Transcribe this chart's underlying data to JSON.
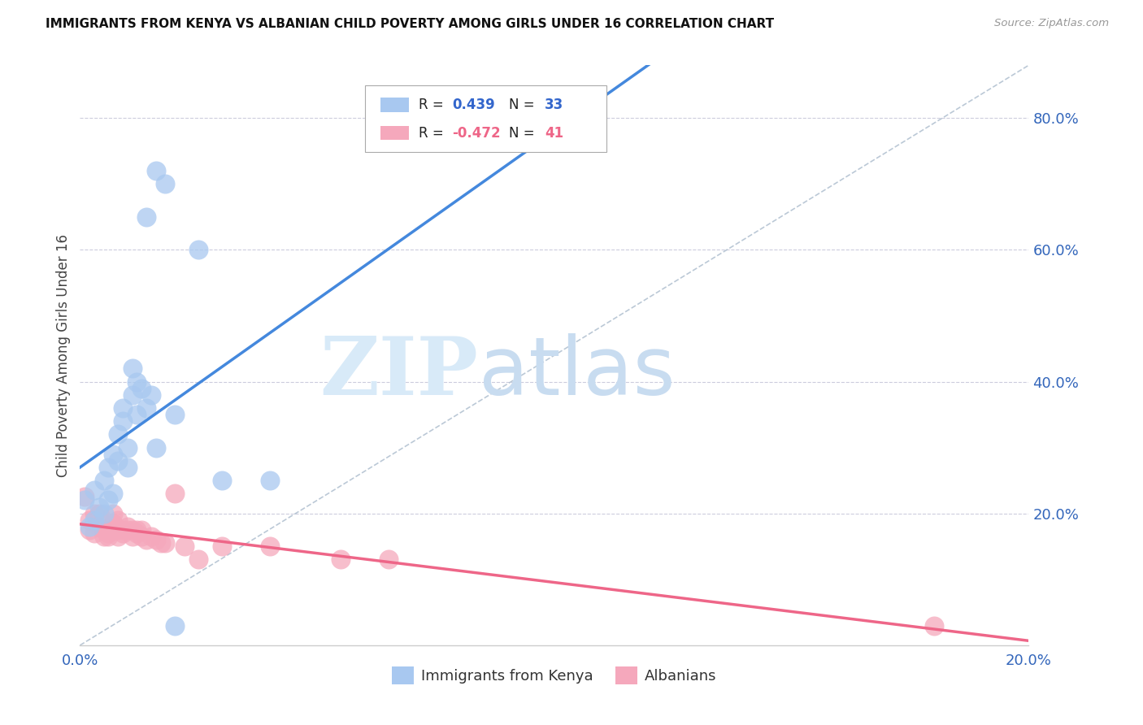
{
  "title": "IMMIGRANTS FROM KENYA VS ALBANIAN CHILD POVERTY AMONG GIRLS UNDER 16 CORRELATION CHART",
  "source": "Source: ZipAtlas.com",
  "ylabel": "Child Poverty Among Girls Under 16",
  "kenya_color": "#A8C8F0",
  "albanian_color": "#F5A8BC",
  "kenya_line_color": "#4488DD",
  "albanian_line_color": "#EE6688",
  "diagonal_color": "#AABBCC",
  "watermark_zip_color": "#D0E4F8",
  "watermark_atlas_color": "#C8D8F0",
  "xlim": [
    0.0,
    0.2
  ],
  "ylim": [
    0.0,
    0.88
  ],
  "yticks": [
    0.2,
    0.4,
    0.6,
    0.8
  ],
  "ytick_labels": [
    "20.0%",
    "40.0%",
    "60.0%",
    "80.0%"
  ],
  "xtick_left": "0.0%",
  "xtick_right": "20.0%",
  "legend_r1": "R = ",
  "legend_v1": "0.439",
  "legend_n1": "N = ",
  "legend_nv1": "33",
  "legend_r2": "R = ",
  "legend_v2": "-0.472",
  "legend_n2": "N = ",
  "legend_nv2": "41",
  "kenya_x": [
    0.002,
    0.003,
    0.001,
    0.004,
    0.005,
    0.003,
    0.006,
    0.007,
    0.005,
    0.006,
    0.007,
    0.008,
    0.008,
    0.009,
    0.01,
    0.01,
    0.009,
    0.011,
    0.012,
    0.013,
    0.011,
    0.012,
    0.014,
    0.015,
    0.016,
    0.014,
    0.016,
    0.018,
    0.02,
    0.025,
    0.03,
    0.04,
    0.02
  ],
  "kenya_y": [
    0.18,
    0.19,
    0.22,
    0.21,
    0.2,
    0.235,
    0.22,
    0.23,
    0.25,
    0.27,
    0.29,
    0.28,
    0.32,
    0.34,
    0.27,
    0.3,
    0.36,
    0.38,
    0.35,
    0.39,
    0.42,
    0.4,
    0.36,
    0.38,
    0.3,
    0.65,
    0.72,
    0.7,
    0.35,
    0.6,
    0.25,
    0.25,
    0.03
  ],
  "albanian_x": [
    0.001,
    0.002,
    0.002,
    0.003,
    0.003,
    0.004,
    0.004,
    0.005,
    0.005,
    0.006,
    0.006,
    0.006,
    0.007,
    0.007,
    0.007,
    0.008,
    0.008,
    0.008,
    0.009,
    0.009,
    0.01,
    0.01,
    0.011,
    0.011,
    0.012,
    0.012,
    0.013,
    0.013,
    0.014,
    0.015,
    0.016,
    0.017,
    0.018,
    0.02,
    0.022,
    0.025,
    0.03,
    0.04,
    0.055,
    0.065,
    0.18
  ],
  "albanian_y": [
    0.225,
    0.19,
    0.175,
    0.2,
    0.17,
    0.2,
    0.18,
    0.175,
    0.165,
    0.175,
    0.17,
    0.165,
    0.185,
    0.175,
    0.2,
    0.165,
    0.175,
    0.19,
    0.175,
    0.17,
    0.18,
    0.175,
    0.175,
    0.165,
    0.17,
    0.175,
    0.165,
    0.175,
    0.16,
    0.165,
    0.16,
    0.155,
    0.155,
    0.23,
    0.15,
    0.13,
    0.15,
    0.15,
    0.13,
    0.13,
    0.03
  ],
  "figsize": [
    14.06,
    8.92
  ],
  "dpi": 100
}
